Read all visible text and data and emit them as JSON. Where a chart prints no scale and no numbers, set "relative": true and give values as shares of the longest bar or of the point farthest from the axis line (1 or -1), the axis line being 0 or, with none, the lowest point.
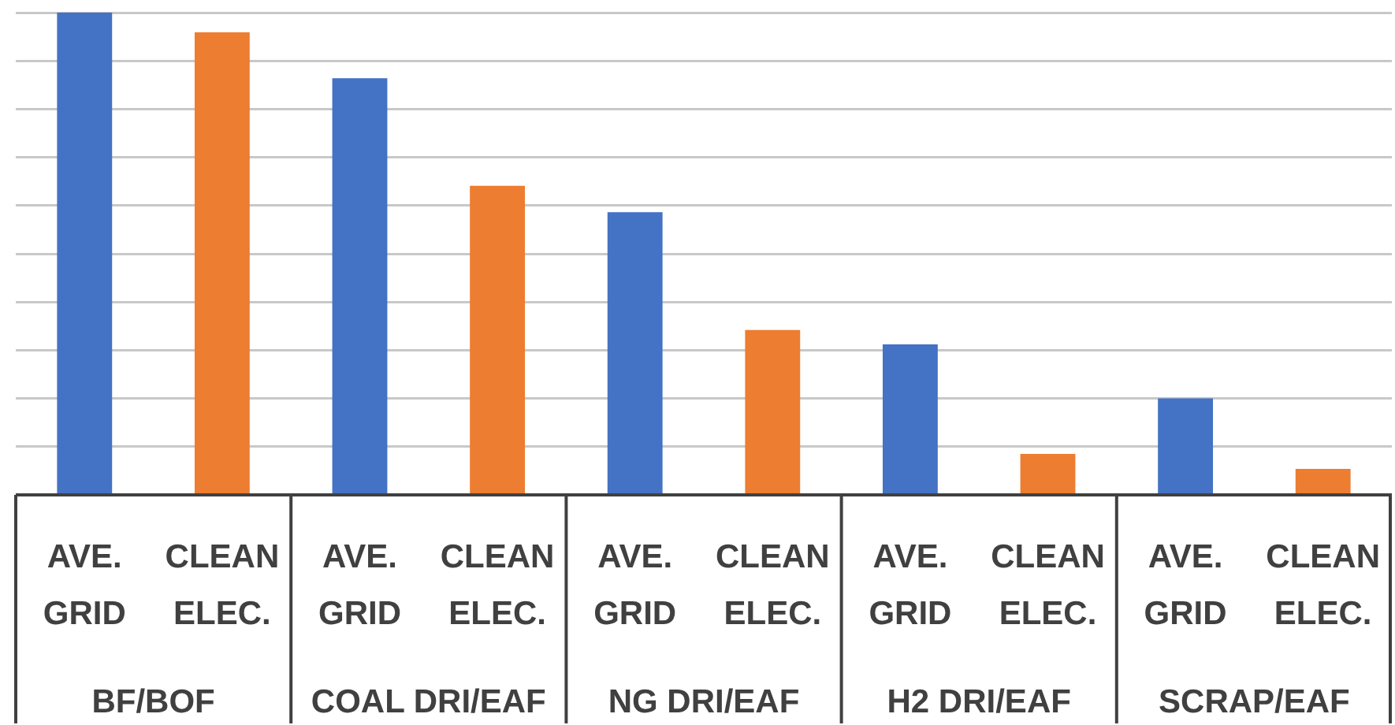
{
  "chart_data": {
    "type": "bar",
    "relative": true,
    "grid": "y",
    "legend": false,
    "categories": [
      "BF/BOF",
      "COAL DRI/EAF",
      "NG DRI/EAF",
      "H2 DRI/EAF",
      "SCRAP/EAF"
    ],
    "series": [
      {
        "name": "AVE. GRID",
        "color": "#4472c4",
        "values": [
          1,
          0.864,
          0.586,
          0.312,
          0.2
        ]
      },
      {
        "name": "CLEAN ELEC.",
        "color": "#ed7d31",
        "values": [
          0.959,
          0.641,
          0.342,
          0.085,
          0.054
        ]
      }
    ]
  }
}
